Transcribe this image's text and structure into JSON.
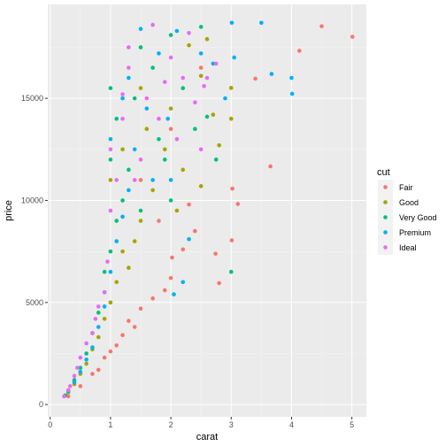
{
  "chart_data": {
    "type": "scatter",
    "xlabel": "carat",
    "ylabel": "price",
    "xlim": [
      -0.04,
      5.24
    ],
    "ylim": [
      -600,
      19600
    ],
    "x_ticks": [
      0,
      1,
      2,
      3,
      4,
      5
    ],
    "y_ticks": [
      0,
      5000,
      10000,
      15000
    ],
    "x_tick_labels": [
      "0",
      "1",
      "2",
      "3",
      "4",
      "5"
    ],
    "y_tick_labels": [
      "0",
      "5000",
      "10000",
      "15000"
    ],
    "grid": true,
    "legend": {
      "title": "cut",
      "position": "right"
    },
    "series": [
      {
        "name": "Fair",
        "color": "#F8766D",
        "points": [
          [
            5.01,
            18018
          ],
          [
            4.5,
            18531
          ],
          [
            4.13,
            17329
          ],
          [
            3.65,
            11668
          ],
          [
            3.4,
            15964
          ],
          [
            3.11,
            9823
          ],
          [
            3.01,
            8040
          ],
          [
            3.02,
            10577
          ],
          [
            2.74,
            7390
          ],
          [
            2.8,
            5950
          ],
          [
            2.4,
            8500
          ],
          [
            2.2,
            7600
          ],
          [
            2.0,
            6200
          ],
          [
            2.02,
            7200
          ],
          [
            1.9,
            5600
          ],
          [
            1.7,
            5200
          ],
          [
            1.5,
            4700
          ],
          [
            1.4,
            3800
          ],
          [
            1.3,
            4100
          ],
          [
            1.2,
            3400
          ],
          [
            1.1,
            2900
          ],
          [
            1.0,
            2600
          ],
          [
            0.9,
            2300
          ],
          [
            0.8,
            1700
          ],
          [
            0.7,
            1500
          ],
          [
            0.5,
            900
          ],
          [
            0.3,
            400
          ],
          [
            1.5,
            11000
          ],
          [
            2.0,
            13500
          ],
          [
            2.5,
            16500
          ],
          [
            1.8,
            9000
          ],
          [
            2.3,
            9800
          ]
        ]
      },
      {
        "name": "Good",
        "color": "#A3A500",
        "points": [
          [
            3.0,
            15510
          ],
          [
            3.0,
            14000
          ],
          [
            2.8,
            12700
          ],
          [
            2.7,
            14200
          ],
          [
            2.5,
            16100
          ],
          [
            2.6,
            17900
          ],
          [
            2.3,
            17600
          ],
          [
            2.2,
            11500
          ],
          [
            2.1,
            9500
          ],
          [
            2.0,
            14500
          ],
          [
            1.9,
            12500
          ],
          [
            1.7,
            10500
          ],
          [
            1.6,
            13500
          ],
          [
            1.5,
            9000
          ],
          [
            1.4,
            8000
          ],
          [
            1.3,
            6700
          ],
          [
            1.2,
            7500
          ],
          [
            1.1,
            6000
          ],
          [
            1.0,
            5000
          ],
          [
            0.9,
            4200
          ],
          [
            0.8,
            3300
          ],
          [
            0.7,
            2700
          ],
          [
            0.6,
            2000
          ],
          [
            0.5,
            1500
          ],
          [
            0.4,
            1000
          ],
          [
            0.3,
            600
          ],
          [
            1.0,
            11000
          ],
          [
            1.2,
            12500
          ],
          [
            1.5,
            15500
          ],
          [
            2.5,
            10700
          ]
        ]
      },
      {
        "name": "Very Good",
        "color": "#00BF7D",
        "points": [
          [
            3.0,
            6500
          ],
          [
            2.5,
            18500
          ],
          [
            2.75,
            12000
          ],
          [
            2.6,
            14100
          ],
          [
            2.4,
            13500
          ],
          [
            2.2,
            15500
          ],
          [
            2.0,
            18100
          ],
          [
            1.9,
            12000
          ],
          [
            1.8,
            13000
          ],
          [
            1.7,
            16500
          ],
          [
            1.5,
            17500
          ],
          [
            1.4,
            15000
          ],
          [
            1.3,
            11500
          ],
          [
            1.2,
            10000
          ],
          [
            1.1,
            9000
          ],
          [
            1.0,
            7500
          ],
          [
            0.9,
            5500
          ],
          [
            0.8,
            4500
          ],
          [
            0.7,
            3500
          ],
          [
            0.6,
            2500
          ],
          [
            0.5,
            1800
          ],
          [
            0.4,
            1200
          ],
          [
            0.3,
            700
          ],
          [
            0.25,
            450
          ],
          [
            1.0,
            12000
          ],
          [
            1.1,
            14000
          ],
          [
            1.0,
            15500
          ],
          [
            0.9,
            6500
          ],
          [
            1.5,
            9500
          ],
          [
            2.0,
            10000
          ]
        ]
      },
      {
        "name": "Premium",
        "color": "#00B0F6",
        "points": [
          [
            4.01,
            15223
          ],
          [
            4.0,
            16000
          ],
          [
            3.67,
            16193
          ],
          [
            3.5,
            18700
          ],
          [
            3.01,
            18700
          ],
          [
            3.05,
            17000
          ],
          [
            2.9,
            15000
          ],
          [
            2.7,
            16700
          ],
          [
            2.5,
            17200
          ],
          [
            2.3,
            8100
          ],
          [
            2.2,
            6000
          ],
          [
            2.05,
            5400
          ],
          [
            2.1,
            18300
          ],
          [
            1.95,
            14000
          ],
          [
            1.8,
            17200
          ],
          [
            1.7,
            11000
          ],
          [
            1.6,
            14500
          ],
          [
            1.5,
            18400
          ],
          [
            1.4,
            12500
          ],
          [
            1.3,
            10500
          ],
          [
            1.2,
            9200
          ],
          [
            1.1,
            8000
          ],
          [
            1.0,
            6500
          ],
          [
            0.9,
            4800
          ],
          [
            0.8,
            3800
          ],
          [
            0.7,
            2800
          ],
          [
            0.6,
            2200
          ],
          [
            0.5,
            1600
          ],
          [
            0.4,
            1100
          ],
          [
            0.3,
            650
          ],
          [
            1.0,
            13000
          ],
          [
            1.2,
            15000
          ],
          [
            1.3,
            16000
          ],
          [
            2.0,
            11000
          ]
        ]
      },
      {
        "name": "Ideal",
        "color": "#E76BF3",
        "points": [
          [
            2.75,
            16700
          ],
          [
            2.6,
            16000
          ],
          [
            2.55,
            15600
          ],
          [
            2.5,
            12500
          ],
          [
            2.4,
            14800
          ],
          [
            2.3,
            18200
          ],
          [
            2.2,
            16000
          ],
          [
            2.1,
            13000
          ],
          [
            2.0,
            17000
          ],
          [
            1.9,
            15800
          ],
          [
            1.8,
            14000
          ],
          [
            1.7,
            18600
          ],
          [
            1.6,
            15000
          ],
          [
            1.5,
            12000
          ],
          [
            1.4,
            11000
          ],
          [
            1.3,
            16500
          ],
          [
            1.2,
            14000
          ],
          [
            1.1,
            11000
          ],
          [
            1.0,
            12500
          ],
          [
            1.0,
            9500
          ],
          [
            0.95,
            7000
          ],
          [
            0.9,
            5500
          ],
          [
            0.8,
            4800
          ],
          [
            0.75,
            4200
          ],
          [
            0.7,
            3500
          ],
          [
            0.6,
            3000
          ],
          [
            0.5,
            2300
          ],
          [
            0.45,
            1800
          ],
          [
            0.4,
            1400
          ],
          [
            0.33,
            900
          ],
          [
            0.3,
            700
          ],
          [
            0.23,
            400
          ],
          [
            1.2,
            15200
          ],
          [
            1.3,
            17500
          ]
        ]
      }
    ]
  }
}
